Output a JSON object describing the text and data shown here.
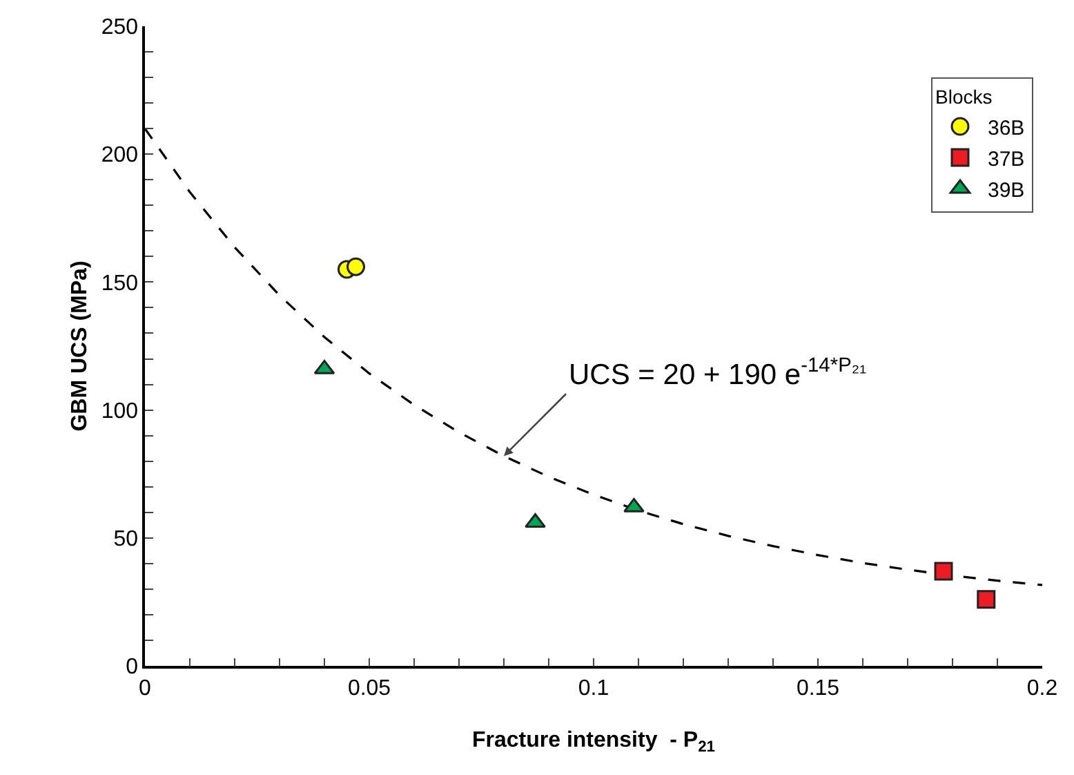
{
  "chart_data": {
    "type": "scatter",
    "xlabel": "Fracture intensity  - P$_{21}$",
    "ylabel": "GBM UCS (MPa)",
    "legend_title": "Blocks",
    "legend": "top right",
    "xlim": [
      0,
      0.2
    ],
    "ylim": [
      0,
      250
    ],
    "xticks": [
      0,
      {
        "value": 0.01,
        "label": null
      },
      {
        "value": 0.02,
        "label": null
      },
      {
        "value": 0.03,
        "label": null
      },
      {
        "value": 0.04,
        "label": null
      },
      0.05,
      {
        "value": 0.06,
        "label": null
      },
      {
        "value": 0.07,
        "label": null
      },
      {
        "value": 0.08,
        "label": null
      },
      {
        "value": 0.09,
        "label": null
      },
      0.1,
      {
        "value": 0.11,
        "label": null
      },
      {
        "value": 0.12,
        "label": null
      },
      {
        "value": 0.13,
        "label": null
      },
      {
        "value": 0.14,
        "label": null
      },
      0.15,
      {
        "value": 0.16,
        "label": null
      },
      {
        "value": 0.17,
        "label": null
      },
      {
        "value": 0.18,
        "label": null
      },
      {
        "value": 0.19,
        "label": null
      },
      0.2
    ],
    "yticks": [
      0,
      {
        "value": 10,
        "label": null
      },
      {
        "value": 20,
        "label": null
      },
      {
        "value": 30,
        "label": null
      },
      {
        "value": 40,
        "label": null
      },
      50,
      {
        "value": 60,
        "label": null
      },
      {
        "value": 70,
        "label": null
      },
      {
        "value": 80,
        "label": null
      },
      {
        "value": 90,
        "label": null
      },
      100,
      {
        "value": 110,
        "label": null
      },
      {
        "value": 120,
        "label": null
      },
      {
        "value": 130,
        "label": null
      },
      {
        "value": 140,
        "label": null
      },
      150,
      {
        "value": 160,
        "label": null
      },
      {
        "value": 170,
        "label": null
      },
      {
        "value": 180,
        "label": null
      },
      {
        "value": 190,
        "label": null
      },
      200,
      {
        "value": 210,
        "label": null
      },
      {
        "value": 220,
        "label": null
      },
      {
        "value": 230,
        "label": null
      },
      {
        "value": 240,
        "label": null
      },
      250
    ],
    "series": [
      {
        "type": "line",
        "color": "#000000",
        "line_style": "dashed",
        "marker": "none",
        "x": [
          0,
          0.01,
          0.02,
          0.03,
          0.04,
          0.05,
          0.06,
          0.07,
          0.08,
          0.09,
          0.1,
          0.11,
          0.12,
          0.13,
          0.14,
          0.15,
          0.16,
          0.17,
          0.18,
          0.19,
          0.2
        ],
        "values": [
          210,
          185.2,
          163.6,
          144.8,
          128.5,
          114.3,
          102.0,
          91.3,
          82.0,
          73.9,
          66.9,
          60.7,
          55.4,
          50.8,
          46.8,
          43.3,
          40.2,
          37.6,
          35.3,
          33.3,
          31.6
        ]
      },
      {
        "name": "36B",
        "color": "#ffff00",
        "marker": "circle",
        "x": [
          0.045,
          0.047
        ],
        "values": [
          155,
          156
        ]
      },
      {
        "name": "37B",
        "color": "#ed1c24",
        "marker": "square",
        "x": [
          0.178,
          0.1875
        ],
        "values": [
          37,
          26
        ]
      },
      {
        "name": "39B",
        "color": "#00a651",
        "marker": "triangle",
        "x": [
          0.04,
          0.087,
          0.109
        ],
        "values": [
          116,
          56,
          62
        ]
      }
    ],
    "annotations": [
      {
        "text": "UCS = 20 + 190 e$^{-14*P₂₁}$",
        "x": 0.08,
        "y": 82.0
      }
    ]
  }
}
